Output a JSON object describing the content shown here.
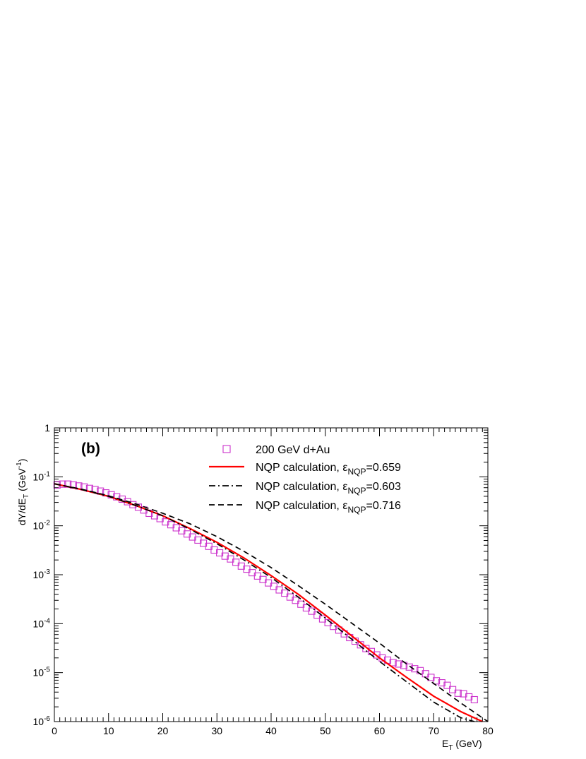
{
  "chart_data": {
    "type": "scatter",
    "panel_label": "(b)",
    "x_axis": {
      "label_main": "E",
      "label_sub": "T",
      "label_unit": " (GeV)",
      "range": [
        0,
        80
      ],
      "ticks": [
        0,
        10,
        20,
        30,
        40,
        50,
        60,
        70,
        80
      ],
      "tick_labels": [
        "0",
        "10",
        "20",
        "30",
        "40",
        "50",
        "60",
        "70",
        "80"
      ]
    },
    "y_axis": {
      "scale": "log",
      "label_main": "dY/dE",
      "label_sub": "T",
      "label_unit": " (GeV",
      "label_sup": "-1",
      "label_close": ")",
      "range": [
        1e-06,
        1
      ],
      "ticks": [
        1e-06,
        1e-05,
        0.0001,
        0.001,
        0.01,
        0.1,
        1
      ],
      "tick_labels": [
        {
          "base": "10",
          "exp": "-6"
        },
        {
          "base": "10",
          "exp": "-5"
        },
        {
          "base": "10",
          "exp": "-4"
        },
        {
          "base": "10",
          "exp": "-3"
        },
        {
          "base": "10",
          "exp": "-2"
        },
        {
          "base": "10",
          "exp": "-1"
        },
        {
          "base": "1",
          "exp": ""
        }
      ]
    },
    "legend": {
      "placement": "top-right",
      "entries": [
        {
          "kind": "marker",
          "color": "#cc33cc",
          "text": "200 GeV d+Au"
        },
        {
          "kind": "solid",
          "color": "#ff0000",
          "prefix": "NQP calculation, ",
          "eps": "ε",
          "sub": "NQP",
          "value": "=0.659"
        },
        {
          "kind": "dashdot",
          "color": "#000000",
          "prefix": "NQP calculation, ",
          "eps": "ε",
          "sub": "NQP",
          "value": "=0.603"
        },
        {
          "kind": "dashed",
          "color": "#000000",
          "prefix": "NQP calculation, ",
          "eps": "ε",
          "sub": "NQP",
          "value": "=0.716"
        }
      ]
    },
    "series": [
      {
        "name": "200 GeV d+Au",
        "kind": "marker",
        "color": "#cc33cc",
        "points": [
          [
            0.5,
            0.068
          ],
          [
            1.5,
            0.071
          ],
          [
            2.5,
            0.071
          ],
          [
            3.5,
            0.068
          ],
          [
            4.5,
            0.065
          ],
          [
            5.5,
            0.062
          ],
          [
            6.5,
            0.058
          ],
          [
            7.5,
            0.055
          ],
          [
            8.5,
            0.051
          ],
          [
            9.5,
            0.047
          ],
          [
            10.5,
            0.043
          ],
          [
            11.5,
            0.039
          ],
          [
            12.5,
            0.035
          ],
          [
            13.5,
            0.031
          ],
          [
            14.5,
            0.027
          ],
          [
            15.5,
            0.024
          ],
          [
            16.5,
            0.021
          ],
          [
            17.5,
            0.018
          ],
          [
            18.5,
            0.016
          ],
          [
            19.5,
            0.014
          ],
          [
            20.5,
            0.012
          ],
          [
            21.5,
            0.0105
          ],
          [
            22.5,
            0.0091
          ],
          [
            23.5,
            0.0079
          ],
          [
            24.5,
            0.0068
          ],
          [
            25.5,
            0.0059
          ],
          [
            26.5,
            0.0051
          ],
          [
            27.5,
            0.0044
          ],
          [
            28.5,
            0.0038
          ],
          [
            29.5,
            0.0032
          ],
          [
            30.5,
            0.0028
          ],
          [
            31.5,
            0.0024
          ],
          [
            32.5,
            0.0021
          ],
          [
            33.5,
            0.0018
          ],
          [
            34.5,
            0.0015
          ],
          [
            35.5,
            0.0013
          ],
          [
            36.5,
            0.0011
          ],
          [
            37.5,
            0.00094
          ],
          [
            38.5,
            0.0008
          ],
          [
            39.5,
            0.00068
          ],
          [
            40.5,
            0.00058
          ],
          [
            41.5,
            0.00049
          ],
          [
            42.5,
            0.00042
          ],
          [
            43.5,
            0.00035
          ],
          [
            44.5,
            0.0003
          ],
          [
            45.5,
            0.00025
          ],
          [
            46.5,
            0.00021
          ],
          [
            47.5,
            0.00018
          ],
          [
            48.5,
            0.00015
          ],
          [
            49.5,
            0.000125
          ],
          [
            50.5,
            0.000105
          ],
          [
            51.5,
            8.8e-05
          ],
          [
            52.5,
            7.4e-05
          ],
          [
            53.5,
            6.2e-05
          ],
          [
            54.5,
            5.2e-05
          ],
          [
            55.5,
            4.4e-05
          ],
          [
            56.5,
            3.7e-05
          ],
          [
            57.5,
            3.1e-05
          ],
          [
            58.5,
            2.7e-05
          ],
          [
            59.5,
            2.3e-05
          ],
          [
            60.5,
            2e-05
          ],
          [
            61.5,
            1.8e-05
          ],
          [
            62.5,
            1.6e-05
          ],
          [
            63.5,
            1.5e-05
          ],
          [
            64.5,
            1.4e-05
          ],
          [
            65.5,
            1.3e-05
          ],
          [
            66.5,
            1.2e-05
          ],
          [
            67.5,
            1.1e-05
          ],
          [
            68.5,
            9.5e-06
          ],
          [
            69.5,
            8e-06
          ],
          [
            70.5,
            6.8e-06
          ],
          [
            71.5,
            6.2e-06
          ],
          [
            72.5,
            5.5e-06
          ],
          [
            73.5,
            4.5e-06
          ],
          [
            74.5,
            3.8e-06
          ],
          [
            75.5,
            3.7e-06
          ],
          [
            76.5,
            3.2e-06
          ],
          [
            77.5,
            2.8e-06
          ]
        ]
      },
      {
        "name": "NQP calculation, ε_NQP=0.659",
        "kind": "solid",
        "color": "#ff0000",
        "points": [
          [
            0,
            0.072
          ],
          [
            5,
            0.055
          ],
          [
            10,
            0.04
          ],
          [
            15,
            0.026
          ],
          [
            20,
            0.016
          ],
          [
            25,
            0.0088
          ],
          [
            30,
            0.0046
          ],
          [
            35,
            0.0022
          ],
          [
            40,
            0.00096
          ],
          [
            45,
            0.0004
          ],
          [
            50,
            0.00015
          ],
          [
            55,
            5.5e-05
          ],
          [
            60,
            2e-05
          ],
          [
            65,
            8e-06
          ],
          [
            70,
            3.3e-06
          ],
          [
            75,
            1.6e-06
          ],
          [
            79,
            1e-06
          ]
        ]
      },
      {
        "name": "NQP calculation, ε_NQP=0.603",
        "kind": "dashdot",
        "color": "#000000",
        "points": [
          [
            0,
            0.072
          ],
          [
            5,
            0.055
          ],
          [
            10,
            0.04
          ],
          [
            15,
            0.026
          ],
          [
            20,
            0.016
          ],
          [
            25,
            0.0085
          ],
          [
            30,
            0.0043
          ],
          [
            35,
            0.002
          ],
          [
            40,
            0.00088
          ],
          [
            45,
            0.00035
          ],
          [
            50,
            0.00013
          ],
          [
            55,
            4.7e-05
          ],
          [
            60,
            1.7e-05
          ],
          [
            65,
            6.5e-06
          ],
          [
            70,
            2.5e-06
          ],
          [
            75,
            1.2e-06
          ],
          [
            77.5,
            1e-06
          ]
        ]
      },
      {
        "name": "NQP calculation, ε_NQP=0.716",
        "kind": "dashed",
        "color": "#000000",
        "points": [
          [
            0,
            0.072
          ],
          [
            5,
            0.056
          ],
          [
            10,
            0.041
          ],
          [
            15,
            0.028
          ],
          [
            20,
            0.018
          ],
          [
            25,
            0.011
          ],
          [
            30,
            0.006
          ],
          [
            35,
            0.003
          ],
          [
            40,
            0.0014
          ],
          [
            45,
            0.0006
          ],
          [
            50,
            0.00025
          ],
          [
            55,
            0.0001
          ],
          [
            60,
            4e-05
          ],
          [
            65,
            1.5e-05
          ],
          [
            70,
            6e-06
          ],
          [
            75,
            2.4e-06
          ],
          [
            80,
            1e-06
          ]
        ]
      }
    ]
  }
}
